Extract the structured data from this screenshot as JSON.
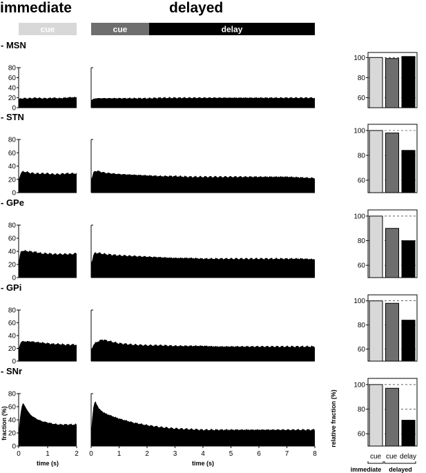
{
  "headers": {
    "immediate": "immediate",
    "delayed": "delayed"
  },
  "phase_bars": {
    "cue_immediate": "cue",
    "cue_delayed": "cue",
    "delay": "delay"
  },
  "colors": {
    "cue_immediate": "#d8d8d8",
    "cue_delayed": "#6e6e6e",
    "delay": "#000000"
  },
  "x_axis": {
    "label": "time (s)",
    "immediate_ticks": [
      0,
      1,
      2
    ],
    "delayed_ticks": [
      0,
      1,
      2,
      3,
      4,
      5,
      6,
      7,
      8
    ]
  },
  "y_axis": {
    "label": "fraction (%)",
    "ticks": [
      0,
      20,
      40,
      60,
      80
    ],
    "ylim": [
      0,
      80
    ]
  },
  "bar_axis": {
    "label": "relative fraction (%)",
    "categories": [
      "cue",
      "cue",
      "delay"
    ],
    "groups": [
      "immediate",
      "delayed"
    ]
  },
  "chart_data": [
    {
      "type": "area",
      "panel": "immediate",
      "region": "MSN",
      "label": "- MSN",
      "xlim": [
        0,
        2
      ],
      "ylim": [
        0,
        80
      ],
      "x": [
        0,
        0.05,
        0.1,
        0.2,
        0.4,
        0.6,
        0.8,
        1.0,
        1.2,
        1.4,
        1.6,
        1.8,
        2.0
      ],
      "y": [
        16,
        18,
        19,
        19,
        19,
        20,
        19,
        19,
        20,
        19,
        20,
        21,
        21
      ]
    },
    {
      "type": "area",
      "panel": "delayed",
      "region": "MSN",
      "xlim": [
        0,
        8
      ],
      "ylim": [
        0,
        80
      ],
      "x": [
        0,
        0.1,
        0.2,
        0.5,
        1,
        1.5,
        2,
        2.5,
        3,
        3.5,
        4,
        4.5,
        5,
        5.5,
        6,
        6.5,
        7,
        7.5,
        8
      ],
      "y": [
        15,
        18,
        19,
        19,
        19,
        19,
        19,
        20,
        20,
        20,
        20,
        20,
        20,
        20,
        20,
        20,
        20,
        20,
        20
      ]
    },
    {
      "type": "bar",
      "panel": "relative",
      "region": "MSN",
      "ylim": [
        50,
        105
      ],
      "yticks": [
        60,
        80,
        100
      ],
      "categories": [
        "cue",
        "cue",
        "delay"
      ],
      "values": [
        100,
        99,
        101
      ]
    },
    {
      "type": "area",
      "panel": "immediate",
      "region": "STN",
      "label": "- STN",
      "xlim": [
        0,
        2
      ],
      "ylim": [
        0,
        80
      ],
      "x": [
        0,
        0.05,
        0.1,
        0.2,
        0.4,
        0.6,
        0.8,
        1.0,
        1.2,
        1.4,
        1.6,
        1.8,
        2.0
      ],
      "y": [
        18,
        28,
        31,
        32,
        30,
        29,
        29,
        29,
        28,
        28,
        29,
        29,
        29
      ]
    },
    {
      "type": "area",
      "panel": "delayed",
      "region": "STN",
      "xlim": [
        0,
        8
      ],
      "ylim": [
        0,
        80
      ],
      "x": [
        0,
        0.1,
        0.2,
        0.5,
        1,
        1.5,
        2,
        2.5,
        3,
        3.5,
        4,
        4.5,
        5,
        5.5,
        6,
        6.5,
        7,
        7.5,
        8
      ],
      "y": [
        20,
        32,
        33,
        30,
        28,
        27,
        26,
        25,
        25,
        24,
        24,
        24,
        24,
        24,
        24,
        24,
        24,
        23,
        22
      ]
    },
    {
      "type": "bar",
      "panel": "relative",
      "region": "STN",
      "ylim": [
        50,
        105
      ],
      "yticks": [
        60,
        80,
        100
      ],
      "categories": [
        "cue",
        "cue",
        "delay"
      ],
      "values": [
        100,
        98,
        84
      ]
    },
    {
      "type": "area",
      "panel": "immediate",
      "region": "GPe",
      "label": "- GPe",
      "xlim": [
        0,
        2
      ],
      "ylim": [
        0,
        80
      ],
      "x": [
        0,
        0.05,
        0.1,
        0.2,
        0.4,
        0.6,
        0.8,
        1.0,
        1.2,
        1.4,
        1.6,
        1.8,
        2.0
      ],
      "y": [
        22,
        37,
        41,
        41,
        40,
        39,
        37,
        37,
        36,
        36,
        36,
        36,
        37
      ]
    },
    {
      "type": "area",
      "panel": "delayed",
      "region": "GPe",
      "xlim": [
        0,
        8
      ],
      "ylim": [
        0,
        80
      ],
      "x": [
        0,
        0.1,
        0.2,
        0.5,
        1,
        1.5,
        2,
        2.5,
        3,
        3.5,
        4,
        4.5,
        5,
        5.5,
        6,
        6.5,
        7,
        7.5,
        8
      ],
      "y": [
        22,
        37,
        38,
        36,
        34,
        33,
        32,
        31,
        30,
        30,
        29,
        29,
        29,
        29,
        29,
        29,
        29,
        29,
        28
      ]
    },
    {
      "type": "bar",
      "panel": "relative",
      "region": "GPe",
      "ylim": [
        50,
        105
      ],
      "yticks": [
        60,
        80,
        100
      ],
      "categories": [
        "cue",
        "cue",
        "delay"
      ],
      "values": [
        100,
        90,
        80
      ]
    },
    {
      "type": "area",
      "panel": "immediate",
      "region": "GPi",
      "label": "- GPi",
      "xlim": [
        0,
        2
      ],
      "ylim": [
        0,
        80
      ],
      "x": [
        0,
        0.05,
        0.1,
        0.2,
        0.4,
        0.6,
        0.8,
        1.0,
        1.2,
        1.4,
        1.6,
        1.8,
        2.0
      ],
      "y": [
        18,
        28,
        31,
        31,
        31,
        30,
        29,
        28,
        27,
        27,
        26,
        26,
        26
      ]
    },
    {
      "type": "area",
      "panel": "delayed",
      "region": "GPi",
      "xlim": [
        0,
        8
      ],
      "ylim": [
        0,
        80
      ],
      "x": [
        0,
        0.1,
        0.2,
        0.4,
        0.6,
        1,
        1.5,
        2,
        2.5,
        3,
        3.5,
        4,
        4.5,
        5,
        5.5,
        6,
        6.5,
        7,
        7.5,
        8
      ],
      "y": [
        18,
        27,
        30,
        34,
        32,
        28,
        26,
        25,
        25,
        24,
        24,
        24,
        23,
        23,
        23,
        23,
        23,
        23,
        23,
        23
      ]
    },
    {
      "type": "bar",
      "panel": "relative",
      "region": "GPi",
      "ylim": [
        50,
        105
      ],
      "yticks": [
        60,
        80,
        100
      ],
      "categories": [
        "cue",
        "cue",
        "delay"
      ],
      "values": [
        100,
        98,
        84
      ]
    },
    {
      "type": "area",
      "panel": "immediate",
      "region": "SNr",
      "label": "- SNr",
      "xlim": [
        0,
        2
      ],
      "ylim": [
        0,
        80
      ],
      "x": [
        0,
        0.05,
        0.1,
        0.15,
        0.2,
        0.3,
        0.4,
        0.6,
        0.8,
        1.0,
        1.2,
        1.4,
        1.6,
        1.8,
        2.0
      ],
      "y": [
        20,
        45,
        60,
        66,
        62,
        55,
        48,
        42,
        38,
        36,
        34,
        33,
        33,
        33,
        33
      ]
    },
    {
      "type": "area",
      "panel": "delayed",
      "region": "SNr",
      "xlim": [
        0,
        8
      ],
      "ylim": [
        0,
        80
      ],
      "x": [
        0,
        0.05,
        0.1,
        0.15,
        0.2,
        0.3,
        0.5,
        0.8,
        1,
        1.5,
        2,
        2.5,
        3,
        3.5,
        4,
        4.5,
        5,
        5.5,
        6,
        6.5,
        7,
        7.5,
        8
      ],
      "y": [
        20,
        50,
        65,
        68,
        64,
        56,
        50,
        45,
        42,
        36,
        32,
        29,
        27,
        26,
        25,
        25,
        25,
        25,
        25,
        25,
        25,
        25,
        25
      ]
    },
    {
      "type": "bar",
      "panel": "relative",
      "region": "SNr",
      "ylim": [
        50,
        105
      ],
      "yticks": [
        60,
        80,
        100
      ],
      "categories": [
        "cue",
        "cue",
        "delay"
      ],
      "values": [
        100,
        97,
        71
      ]
    }
  ]
}
